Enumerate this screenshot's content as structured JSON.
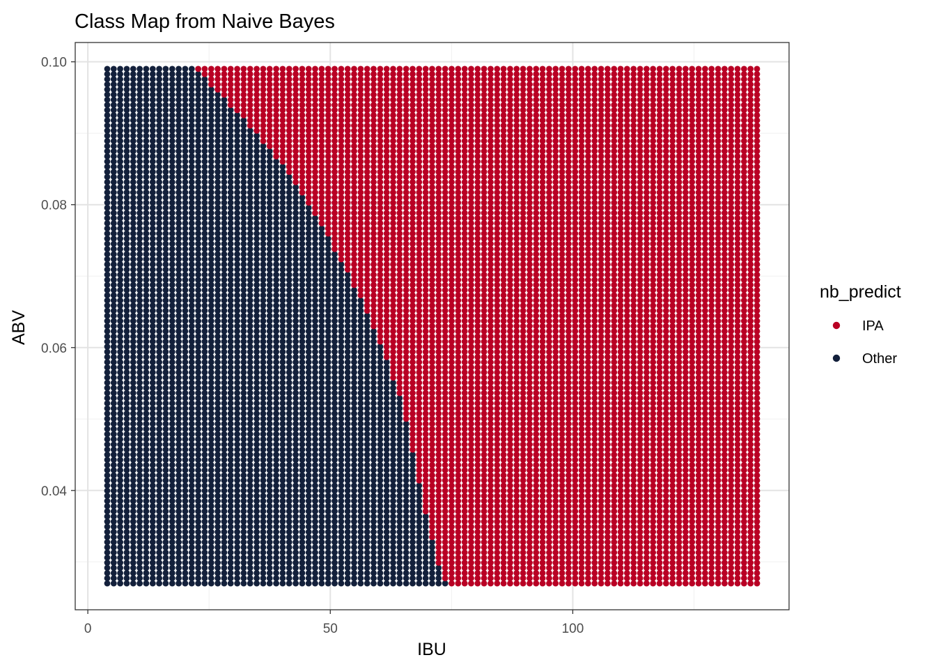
{
  "chart_data": {
    "type": "scatter",
    "title": "Class Map from Naive Bayes",
    "xlabel": "IBU",
    "ylabel": "ABV",
    "xlim": [
      -2.6,
      144.6
    ],
    "ylim": [
      0.0233,
      0.1027
    ],
    "x_ticks": [
      0,
      50,
      100
    ],
    "x_tick_labels": [
      "0",
      "50",
      "100"
    ],
    "x_minor_ticks": [
      25,
      75,
      125
    ],
    "y_ticks": [
      0.04,
      0.06,
      0.08,
      0.1
    ],
    "y_tick_labels": [
      "0.04",
      "0.06",
      "0.08",
      "0.10"
    ],
    "y_minor_ticks": [
      0.03,
      0.05,
      0.07,
      0.09
    ],
    "grid": true,
    "legend": {
      "title": "nb_predict",
      "placement": "right",
      "entries": [
        {
          "label": "IPA",
          "color": "#B90024"
        },
        {
          "label": "Other",
          "color": "#13203B"
        }
      ]
    },
    "grid_points": {
      "x_start": 4,
      "x_end": 138,
      "x_step": 1.34,
      "y_start": 0.027,
      "y_end": 0.099,
      "y_step": 0.00072
    },
    "series": [
      {
        "name": "IPA",
        "color": "#B90024"
      },
      {
        "name": "Other",
        "color": "#13203B"
      }
    ],
    "decision_boundary": {
      "description": "IBU threshold above which the predicted class is IPA, by ABV",
      "abv": [
        0.027,
        0.029,
        0.031,
        0.033,
        0.035,
        0.037,
        0.039,
        0.041,
        0.043,
        0.045,
        0.047,
        0.049,
        0.051,
        0.053,
        0.055,
        0.057,
        0.059,
        0.061,
        0.063,
        0.065,
        0.067,
        0.069,
        0.071,
        0.073,
        0.075,
        0.077,
        0.079,
        0.081,
        0.083,
        0.085,
        0.087,
        0.089,
        0.091,
        0.093,
        0.095,
        0.097,
        0.099
      ],
      "ibu": [
        73.8,
        72.5,
        71.7,
        71.1,
        70.3,
        69.4,
        69.0,
        68.5,
        67.6,
        67.0,
        66.3,
        65.8,
        64.9,
        64.3,
        63.2,
        62.3,
        61.2,
        60.0,
        58.5,
        57.5,
        56.2,
        54.6,
        53.3,
        51.3,
        50.0,
        48.2,
        46.5,
        44.7,
        42.6,
        40.6,
        38.3,
        36.0,
        33.4,
        30.8,
        28.0,
        25.2,
        22.5
      ]
    }
  }
}
